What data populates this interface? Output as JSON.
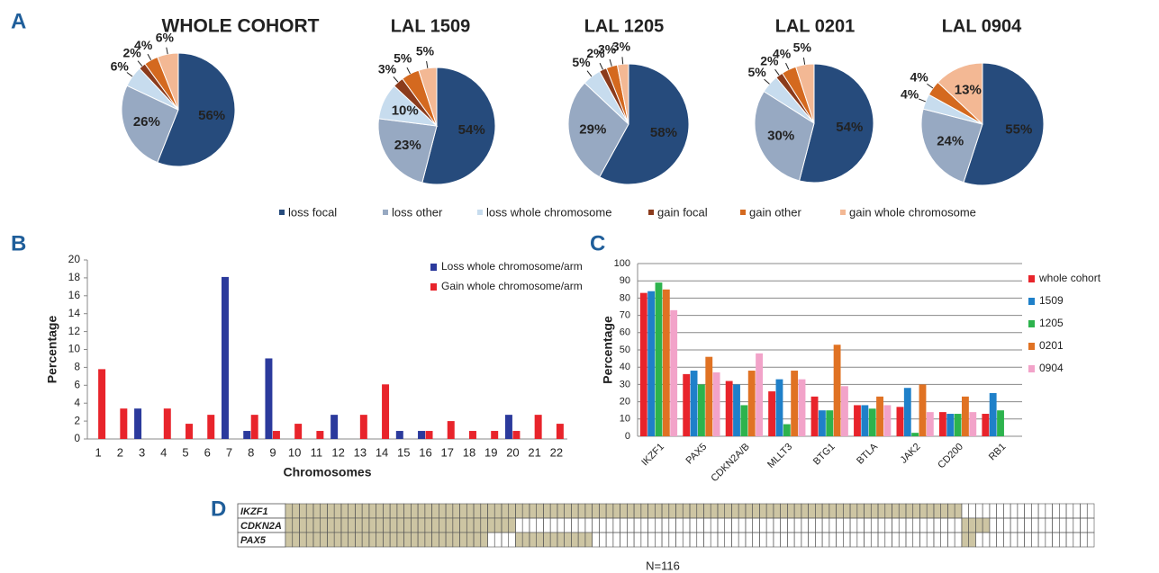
{
  "panels": [
    "A",
    "B",
    "C",
    "D"
  ],
  "legend": {
    "categories": [
      "loss focal",
      "loss other",
      "loss whole chromosome",
      "gain focal",
      "gain other",
      "gain whole chromosome"
    ],
    "colors": [
      "#264b7c",
      "#97a9c2",
      "#c7dcee",
      "#8b3b1c",
      "#d4691f",
      "#f3b894"
    ]
  },
  "chart_data": [
    {
      "type": "pie",
      "title": "WHOLE COHORT",
      "values": [
        56,
        26,
        6,
        2,
        4,
        6
      ],
      "value_labels": [
        "56%",
        "26%",
        "6%",
        "2%",
        "4%",
        "6%"
      ]
    },
    {
      "type": "pie",
      "title": "LAL 1509",
      "values": [
        54,
        23,
        10,
        3,
        5,
        5
      ],
      "value_labels": [
        "54%",
        "23%",
        "10%",
        "3%",
        "5%",
        "5%"
      ]
    },
    {
      "type": "pie",
      "title": "LAL 1205",
      "values": [
        58,
        29,
        5,
        2,
        3,
        3
      ],
      "value_labels": [
        "58%",
        "29%",
        "5%",
        "2%",
        "3%",
        "3%"
      ]
    },
    {
      "type": "pie",
      "title": "LAL 0201",
      "values": [
        54,
        30,
        5,
        2,
        4,
        5
      ],
      "value_labels": [
        "54%",
        "30%",
        "5%",
        "2%",
        "4%",
        "5%"
      ]
    },
    {
      "type": "pie",
      "title": "LAL 0904",
      "values": [
        55,
        24,
        4,
        0,
        4,
        13
      ],
      "value_labels": [
        "55%",
        "24%",
        "4%",
        null,
        "4%",
        "13%"
      ]
    },
    {
      "type": "bar",
      "xlabel": "Chromosomes",
      "ylabel": "Percentage",
      "categories": [
        "1",
        "2",
        "3",
        "4",
        "5",
        "6",
        "7",
        "8",
        "9",
        "10",
        "11",
        "12",
        "13",
        "14",
        "15",
        "16",
        "17",
        "18",
        "19",
        "20",
        "21",
        "22"
      ],
      "series": [
        {
          "name": "Loss whole chromosome/arm",
          "color": "#2b3a9c",
          "values": [
            0,
            0,
            3.4,
            0,
            0,
            0,
            18.1,
            0.9,
            9,
            0,
            0,
            2.7,
            0,
            0,
            0.9,
            0.9,
            0,
            0,
            0,
            2.7,
            0,
            0
          ]
        },
        {
          "name": "Gain whole chromosome/arm",
          "color": "#e8242b",
          "values": [
            7.8,
            3.4,
            0,
            3.4,
            1.7,
            2.7,
            0,
            2.7,
            0.9,
            1.7,
            0.9,
            0,
            2.7,
            6.1,
            0,
            0.9,
            2,
            0.9,
            0.9,
            0.9,
            2.7,
            1.7
          ]
        }
      ],
      "ylim": [
        0,
        20
      ],
      "yticks": [
        0,
        2,
        4,
        6,
        8,
        10,
        12,
        14,
        16,
        18,
        20
      ],
      "grid": false,
      "legend": "upper right"
    },
    {
      "type": "bar",
      "ylabel": "Percentage",
      "categories": [
        "IKZF1",
        "PAX5",
        "CDKN2A/B",
        "MLLT3",
        "BTG1",
        "BTLA",
        "JAK2",
        "CD200",
        "RB1"
      ],
      "series": [
        {
          "name": "whole cohort",
          "color": "#e8242b",
          "values": [
            83,
            36,
            32,
            26,
            23,
            18,
            17,
            14,
            13
          ]
        },
        {
          "name": "1509",
          "color": "#1f80c9",
          "values": [
            84,
            38,
            30,
            33,
            15,
            18,
            28,
            13,
            25
          ]
        },
        {
          "name": "1205",
          "color": "#2db34d",
          "values": [
            89,
            30,
            18,
            7,
            15,
            16,
            2,
            13,
            15
          ]
        },
        {
          "name": "0201",
          "color": "#e07223",
          "values": [
            85,
            46,
            38,
            38,
            53,
            23,
            30,
            23,
            null
          ]
        },
        {
          "name": "0904",
          "color": "#f2a3c9",
          "values": [
            73,
            37,
            48,
            33,
            29,
            18,
            14,
            14,
            null
          ]
        }
      ],
      "ylim": [
        0,
        100
      ],
      "yticks": [
        0,
        10,
        20,
        30,
        40,
        50,
        60,
        70,
        80,
        90,
        100
      ],
      "grid": true,
      "legend": "right"
    },
    {
      "type": "heatmap",
      "columns": 116,
      "xlabel": "N=116",
      "color": "#cdc5a3",
      "rows": [
        {
          "name": "IKZF1",
          "ranges": [
            [
              0,
              97
            ]
          ]
        },
        {
          "name": "CDKN2A",
          "ranges": [
            [
              0,
              33
            ],
            [
              97,
              101
            ]
          ]
        },
        {
          "name": "PAX5",
          "ranges": [
            [
              0,
              29
            ],
            [
              33,
              44
            ],
            [
              97,
              99
            ]
          ]
        }
      ]
    }
  ]
}
